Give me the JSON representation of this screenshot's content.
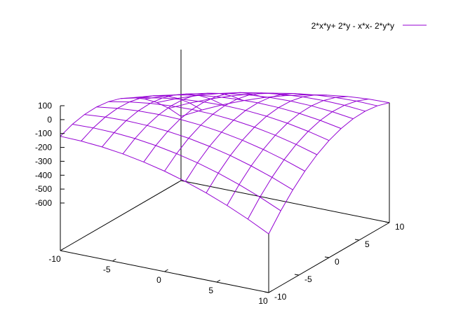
{
  "chart_data": {
    "type": "surface",
    "legend": {
      "label": "2*x*y+ 2*y - x*x- 2*y*y",
      "placement": "top-right",
      "color": "#9400d3"
    },
    "function": "2*x*y + 2*y - x*x - 2*y*y",
    "x_range": [
      -10,
      10
    ],
    "y_range": [
      -10,
      10
    ],
    "z_range": [
      -600,
      100
    ],
    "grid_samples": 10,
    "x_ticks": [
      "-10",
      "-5",
      "0",
      "5",
      "10"
    ],
    "y_ticks": [
      "-10",
      "-5",
      "0",
      "5",
      "10"
    ],
    "z_ticks": [
      "100",
      "0",
      "-100",
      "-200",
      "-300",
      "-400",
      "-500",
      "-600"
    ],
    "surface_color": "#9400d3",
    "axis_color": "#000000"
  }
}
